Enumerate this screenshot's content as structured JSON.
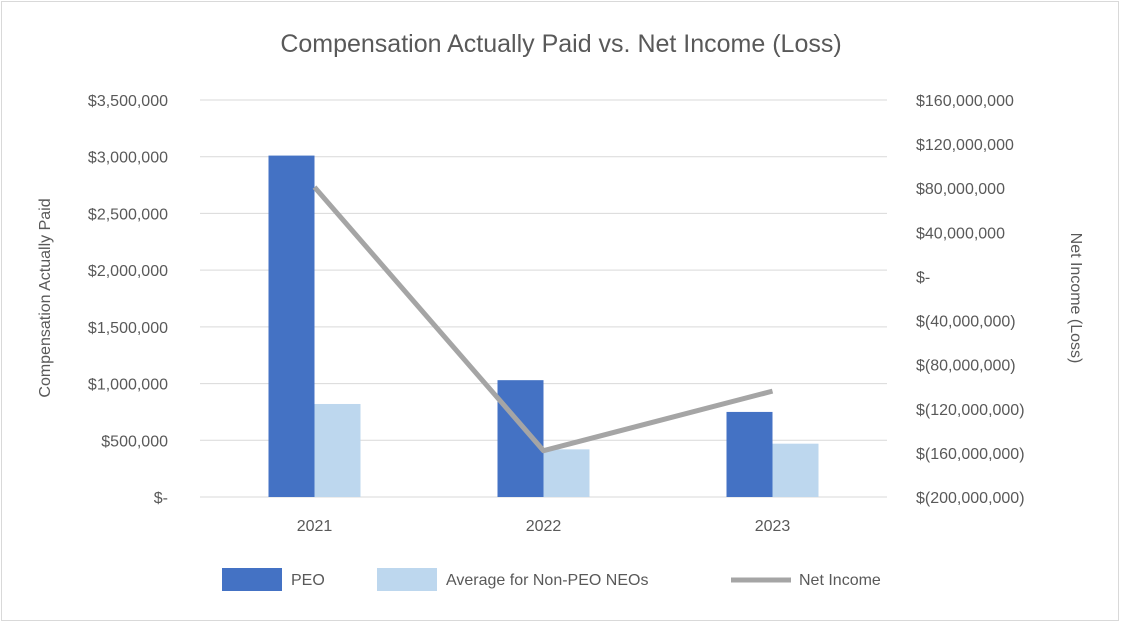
{
  "chart_data": {
    "type": "bar",
    "title": "Compensation Actually Paid vs. Net Income (Loss)",
    "categories": [
      "2021",
      "2022",
      "2023"
    ],
    "ylabel": "Compensation Actually Paid",
    "y2label": "Net Income (Loss)",
    "ylim": [
      0,
      3500000
    ],
    "y2lim": [
      -200000000,
      160000000
    ],
    "yticks": [
      "$3,500,000",
      "$3,000,000",
      "$2,500,000",
      "$2,000,000",
      "$1,500,000",
      "$1,000,000",
      "$500,000",
      "$-"
    ],
    "y2ticks": [
      "$160,000,000",
      "$120,000,000",
      "$80,000,000",
      "$40,000,000",
      "$-",
      "$(40,000,000)",
      "$(80,000,000)",
      "$(120,000,000)",
      "$(160,000,000)",
      "$(200,000,000)"
    ],
    "series": [
      {
        "name": "PEO",
        "kind": "bar",
        "axis": "left",
        "color": "#4472c4",
        "values": [
          3010000,
          1030000,
          750000
        ]
      },
      {
        "name": "Average for Non-PEO NEOs",
        "kind": "bar",
        "axis": "left",
        "color": "#bdd7ee",
        "values": [
          820000,
          420000,
          470000
        ]
      },
      {
        "name": "Net Income",
        "kind": "line",
        "axis": "right",
        "color": "#a5a5a5",
        "values": [
          81000000,
          -158000000,
          -104000000
        ]
      }
    ],
    "grid": true,
    "legend_position": "bottom"
  }
}
